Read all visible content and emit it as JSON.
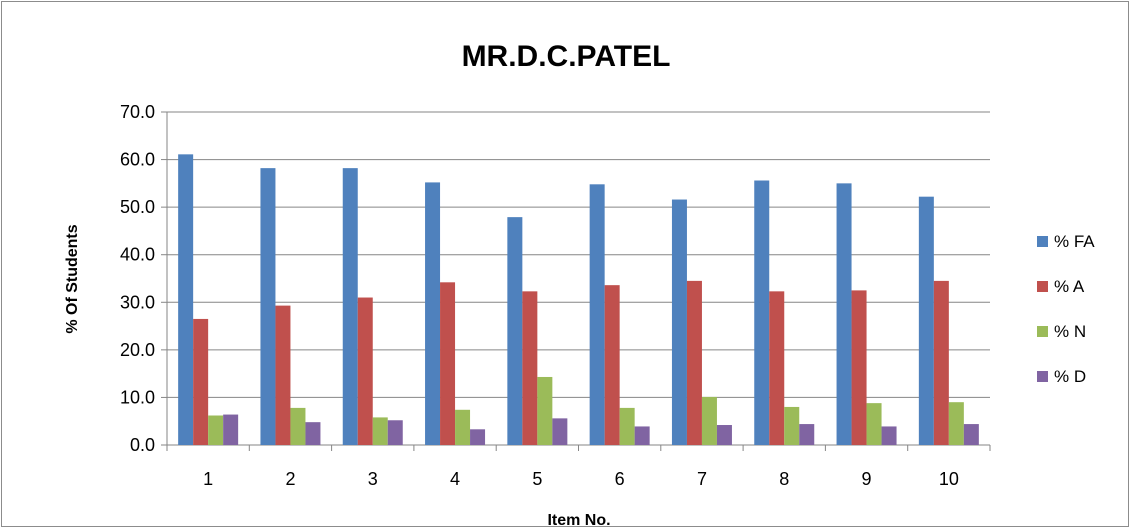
{
  "chart_data": {
    "type": "bar",
    "title": "MR.D.C.PATEL",
    "xlabel": "Item No.",
    "ylabel": "% Of Students",
    "categories": [
      "1",
      "2",
      "3",
      "4",
      "5",
      "6",
      "7",
      "8",
      "9",
      "10"
    ],
    "ylim": [
      0,
      70
    ],
    "yticks": [
      "0.0",
      "10.0",
      "20.0",
      "30.0",
      "40.0",
      "50.0",
      "60.0",
      "70.0"
    ],
    "grid": "horizontal",
    "legend_position": "right",
    "series": [
      {
        "name": "% FA",
        "color": "#4f81bd",
        "values": [
          61.1,
          58.2,
          58.2,
          55.2,
          47.9,
          54.8,
          51.6,
          55.6,
          55.0,
          52.2
        ]
      },
      {
        "name": "% A",
        "color": "#c0504d",
        "values": [
          26.5,
          29.3,
          31.0,
          34.2,
          32.3,
          33.6,
          34.5,
          32.3,
          32.5,
          34.5
        ]
      },
      {
        "name": "% N",
        "color": "#9bbb59",
        "values": [
          6.2,
          7.8,
          5.8,
          7.4,
          14.3,
          7.8,
          10.1,
          8.0,
          8.8,
          9.0
        ]
      },
      {
        "name": "% D",
        "color": "#8064a2",
        "values": [
          6.4,
          4.8,
          5.2,
          3.3,
          5.6,
          3.9,
          4.2,
          4.4,
          3.9,
          4.4
        ]
      }
    ]
  }
}
